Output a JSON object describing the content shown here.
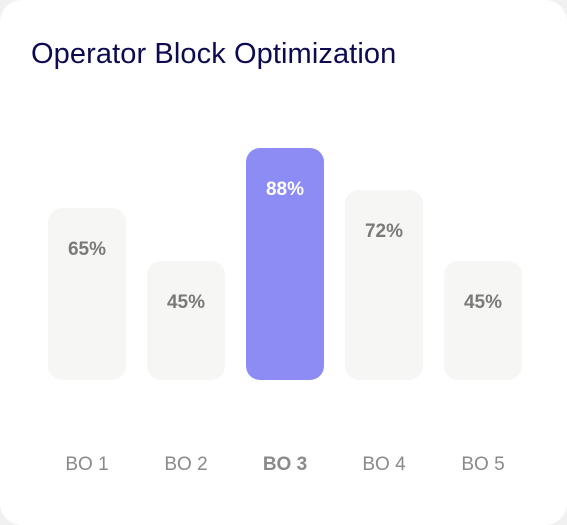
{
  "chart_data": {
    "type": "bar",
    "title": "Operator Block Optimization",
    "categories": [
      "BO 1",
      "BO 2",
      "BO 3",
      "BO 4",
      "BO 5"
    ],
    "values": [
      65,
      45,
      88,
      72,
      45
    ],
    "value_labels": [
      "65%",
      "45%",
      "88%",
      "72%",
      "45%"
    ],
    "highlighted_category": "BO 3",
    "ylim": [
      0,
      100
    ],
    "grid": false,
    "legend": "none",
    "xlabel": "",
    "ylabel": ""
  },
  "colors": {
    "title": "#0d0a52",
    "bar": "#f6f6f4",
    "bar_highlight": "#8d8cf5",
    "value_label": "#7a7a7a",
    "value_label_highlight": "#ffffff",
    "category_label": "#8a8a8a",
    "category_label_highlight": "#8a8a8a"
  }
}
